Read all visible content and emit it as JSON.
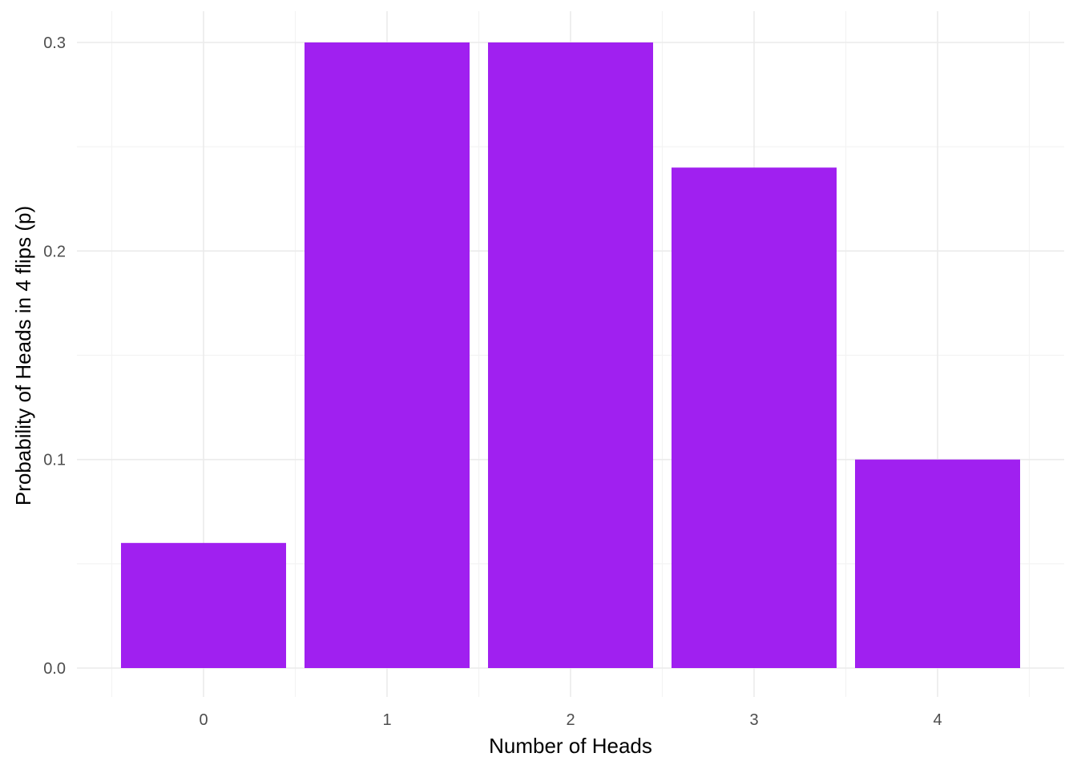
{
  "chart_data": {
    "type": "bar",
    "categories": [
      "0",
      "1",
      "2",
      "3",
      "4"
    ],
    "values": [
      0.06,
      0.3,
      0.3,
      0.24,
      0.1
    ],
    "title": "",
    "xlabel": "Number of Heads",
    "ylabel": "Probability of Heads in 4 flips (p)",
    "ylim": [
      0,
      0.3
    ],
    "yticks": [
      "0.0",
      "0.1",
      "0.2",
      "0.3"
    ],
    "grid": true,
    "legend": "none",
    "colors": {
      "bar": "#A020F0",
      "grid": "#EBEBEB",
      "background": "#FFFFFF"
    }
  }
}
